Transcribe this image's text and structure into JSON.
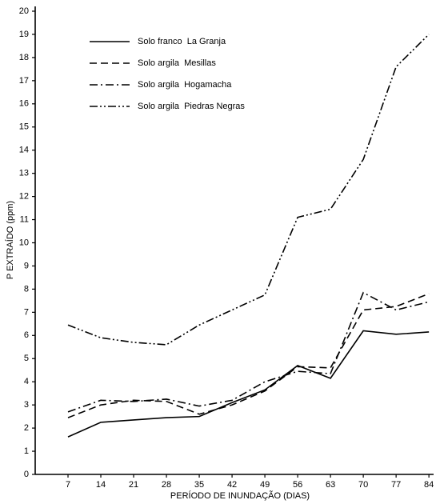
{
  "chart_data": {
    "type": "line",
    "x_label": "PERÍODO DE INUNDAÇÃO (DIAS)",
    "y_label": "P EXTRAÍDO (ppm)",
    "x": [
      7,
      14,
      21,
      28,
      35,
      42,
      49,
      56,
      63,
      70,
      77,
      84
    ],
    "xlim": [
      0,
      85
    ],
    "xticks": [
      7,
      14,
      21,
      28,
      35,
      42,
      49,
      56,
      63,
      70,
      77,
      84
    ],
    "ylim": [
      0,
      20
    ],
    "yticks": [
      0,
      1,
      2,
      3,
      4,
      5,
      6,
      7,
      8,
      9,
      10,
      11,
      12,
      13,
      14,
      15,
      16,
      17,
      18,
      19,
      20
    ],
    "legend": "upper left",
    "series": [
      {
        "name": "Solo franco  La Granja",
        "color": "#000000",
        "style": "solid",
        "values": [
          1.62,
          2.25,
          2.35,
          2.45,
          2.5,
          3.1,
          3.65,
          4.7,
          4.15,
          6.2,
          6.05,
          6.15
        ]
      },
      {
        "name": "Solo argila  Mesillas",
        "color": "#000000",
        "style": "dashed",
        "values": [
          2.45,
          3.0,
          3.2,
          3.15,
          2.6,
          3.0,
          3.6,
          4.65,
          4.6,
          7.1,
          7.25,
          7.8
        ]
      },
      {
        "name": "Solo argila  Hogamacha",
        "color": "#000000",
        "style": "dashdot",
        "values": [
          2.7,
          3.2,
          3.15,
          3.25,
          2.95,
          3.2,
          4.0,
          4.45,
          4.35,
          7.85,
          7.1,
          7.45
        ]
      },
      {
        "name": "Solo argila  Piedras Negras",
        "color": "#000000",
        "style": "dashdotdot",
        "values": [
          6.45,
          5.9,
          5.7,
          5.6,
          6.45,
          7.1,
          7.75,
          11.1,
          11.45,
          13.6,
          17.6,
          19.0
        ]
      }
    ]
  }
}
